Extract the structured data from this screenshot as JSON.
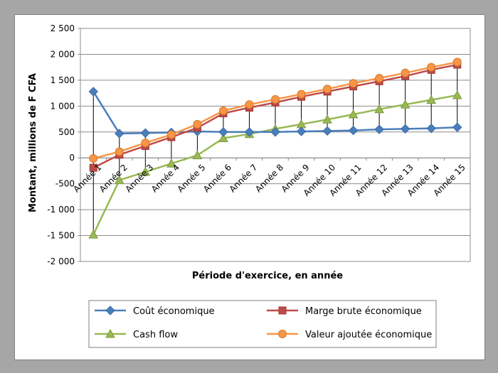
{
  "chart_data": {
    "type": "line",
    "categories": [
      "Année 1",
      "Année 2",
      "Année 3",
      "Année 4",
      "Année 5",
      "Année 6",
      "Année 7",
      "Année 8",
      "Année 9",
      "Année 10",
      "Année 11",
      "Année 12",
      "Année 13",
      "Année 14",
      "Année 15"
    ],
    "series": [
      {
        "name": "Coût économique",
        "color": "#4a7ebb",
        "marker": "diamond",
        "values": [
          1280,
          470,
          480,
          490,
          510,
          500,
          500,
          500,
          510,
          520,
          530,
          550,
          560,
          570,
          590
        ]
      },
      {
        "name": "Marge brute économique",
        "color": "#be4b48",
        "marker": "square",
        "values": [
          -190,
          60,
          230,
          400,
          580,
          860,
          970,
          1070,
          1180,
          1280,
          1380,
          1480,
          1580,
          1700,
          1800
        ]
      },
      {
        "name": "Cash flow",
        "color": "#98b954",
        "marker": "triangle",
        "values": [
          -1480,
          -430,
          -270,
          -110,
          50,
          380,
          460,
          560,
          650,
          740,
          840,
          940,
          1030,
          1120,
          1210
        ]
      },
      {
        "name": "Valeur ajoutée économique",
        "color": "#f79646",
        "marker": "circle",
        "values": [
          -10,
          120,
          290,
          450,
          650,
          910,
          1030,
          1130,
          1230,
          1330,
          1440,
          1540,
          1640,
          1750,
          1850
        ]
      }
    ],
    "xlabel": "Période d'exercice, en année",
    "ylabel": "Montant, millions de F CFA",
    "ylim": [
      -2000,
      2500
    ],
    "yticks": [
      -2000,
      -1500,
      -1000,
      -500,
      0,
      500,
      1000,
      1500,
      2000,
      2500
    ],
    "ytick_labels": [
      "-2 000",
      "-1 500",
      "-1 000",
      "-500",
      "0",
      "500",
      "1 000",
      "1 500",
      "2 000",
      "2 500"
    ],
    "grid": true,
    "drop_lines": true,
    "legend_position": "bottom"
  }
}
